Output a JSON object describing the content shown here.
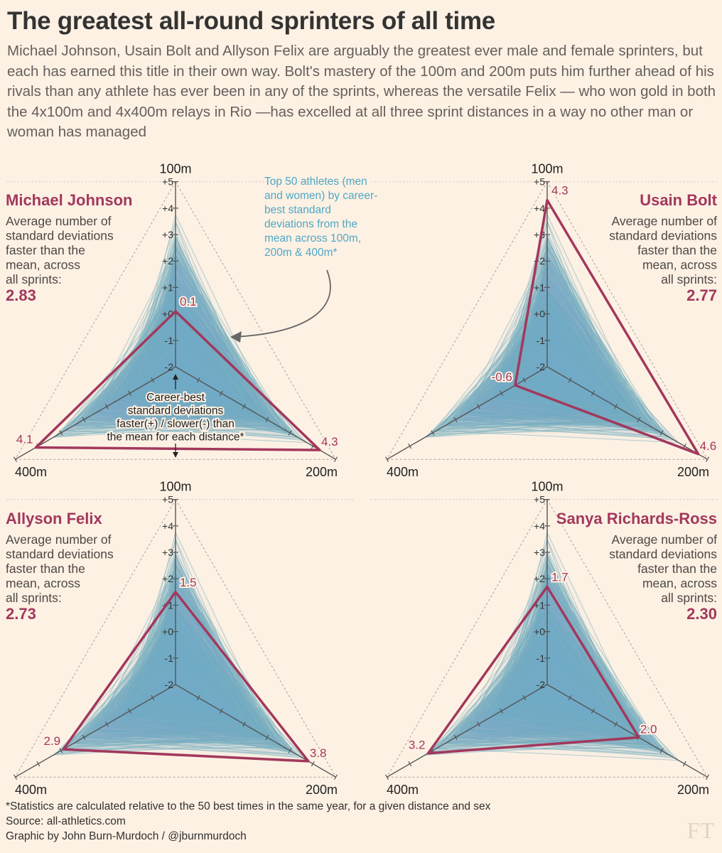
{
  "title": "The greatest all-round sprinters of all time",
  "subtitle": "Michael Johnson, Usain Bolt and Allyson Felix are arguably the greatest ever male and female sprinters, but each has earned this title in their own way. Bolt's mastery of the 100m and 200m puts him further ahead of his rivals than any athlete has ever been in any of the sprints, whereas the versatile Felix — who won gold in both the 4x100m and 4x400m relays in Rio —has excelled at all three sprint distances in a way no other man or woman has managed",
  "annotations": {
    "top50": [
      "Top 50 athletes (men",
      "and women) by career-",
      "best standard",
      "deviations from the",
      "mean across 100m,",
      "200m & 400m*"
    ],
    "axis_note": [
      "Career-best",
      "standard deviations",
      "faster(+) / slower(-) than",
      "the mean for each distance*"
    ]
  },
  "footer": {
    "note": "*Statistics are calculated relative to the 50 best times in the same year, for a given distance and sex",
    "source": "Source: all-athletics.com",
    "credit": "Graphic by John Burn-Murdoch / @jburnmurdoch",
    "logo": "FT"
  },
  "colors": {
    "background": "#fdf1e4",
    "highlight": "#a2385c",
    "athletes": "#7fb4c1",
    "annotation": "#4fa8c4",
    "axis": "#555555"
  },
  "chart_data": [
    {
      "type": "radar",
      "athlete": "Michael Johnson",
      "avg_label": [
        "Average number of",
        "standard deviations",
        "faster than the",
        "mean, across",
        "all sprints:"
      ],
      "average": "2.83",
      "axes": [
        "100m",
        "200m",
        "400m"
      ],
      "tick_labels": [
        "+5",
        "+4",
        "+3",
        "+2",
        "+1",
        "+0",
        "-1",
        "-2"
      ],
      "range": [
        -2,
        5
      ],
      "values": {
        "100m": 0.1,
        "200m": 4.3,
        "400m": 4.1
      },
      "value_labels": {
        "100m": "0.1",
        "200m": "4.3",
        "400m": "4.1"
      },
      "label_side": "left"
    },
    {
      "type": "radar",
      "athlete": "Usain Bolt",
      "avg_label": [
        "Average number of",
        "standard deviations",
        "faster than the",
        "mean, across",
        "all sprints:"
      ],
      "average": "2.77",
      "axes": [
        "100m",
        "200m",
        "400m"
      ],
      "tick_labels": [
        "+5",
        "+4",
        "+3",
        "+2",
        "+1",
        "+0",
        "-1",
        "-2"
      ],
      "range": [
        -2,
        5
      ],
      "values": {
        "100m": 4.3,
        "200m": 4.6,
        "400m": -0.6
      },
      "value_labels": {
        "100m": "4.3",
        "200m": "4.6",
        "400m": "-0.6"
      },
      "label_side": "right"
    },
    {
      "type": "radar",
      "athlete": "Allyson Felix",
      "avg_label": [
        "Average number of",
        "standard deviations",
        "faster than the",
        "mean, across",
        "all sprints:"
      ],
      "average": "2.73",
      "axes": [
        "100m",
        "200m",
        "400m"
      ],
      "tick_labels": [
        "+5",
        "+4",
        "+3",
        "+2",
        "+1",
        "+0",
        "-1",
        "-2"
      ],
      "range": [
        -2,
        5
      ],
      "values": {
        "100m": 1.5,
        "200m": 3.8,
        "400m": 2.9
      },
      "value_labels": {
        "100m": "1.5",
        "200m": "3.8",
        "400m": "2.9"
      },
      "label_side": "left"
    },
    {
      "type": "radar",
      "athlete": "Sanya Richards-Ross",
      "avg_label": [
        "Average number of",
        "standard deviations",
        "faster than the",
        "mean, across",
        "all sprints:"
      ],
      "average": "2.30",
      "axes": [
        "100m",
        "200m",
        "400m"
      ],
      "tick_labels": [
        "+5",
        "+4",
        "+3",
        "+2",
        "+1",
        "+0",
        "-1",
        "-2"
      ],
      "range": [
        -2,
        5
      ],
      "values": {
        "100m": 1.7,
        "200m": 2.0,
        "400m": 3.2
      },
      "value_labels": {
        "100m": "1.7",
        "200m": "2.0",
        "400m": "3.2"
      },
      "label_side": "right"
    }
  ]
}
